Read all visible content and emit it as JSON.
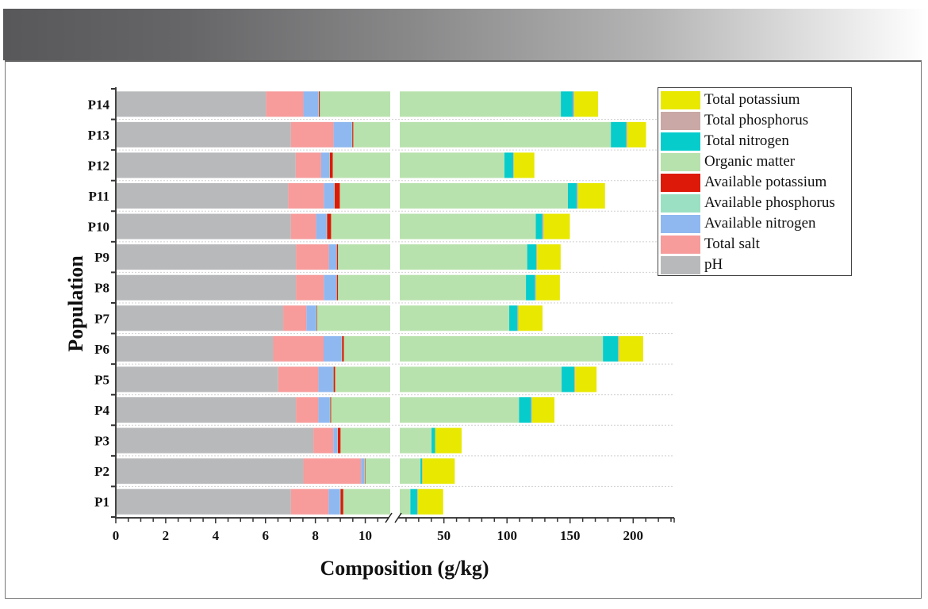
{
  "chart_data": {
    "type": "bar",
    "orientation": "horizontal",
    "stacked": true,
    "xlabel": "Composition (g/kg)",
    "ylabel": "Population",
    "x_axis_break": [
      11,
      15
    ],
    "xlim": [
      0,
      230
    ],
    "x_ticks_left": [
      "0",
      "2",
      "4",
      "6",
      "8",
      "10"
    ],
    "x_ticks_right": [
      "50",
      "100",
      "150",
      "200"
    ],
    "grid": "dotted horizontal between rows",
    "legend_position": "top-right",
    "categories": [
      "P1",
      "P2",
      "P3",
      "P4",
      "P5",
      "P6",
      "P7",
      "P8",
      "P9",
      "P10",
      "P11",
      "P12",
      "P13",
      "P14"
    ],
    "series": [
      {
        "name": "pH",
        "color": "#b8b9bb",
        "values": [
          7.02,
          7.52,
          7.92,
          7.22,
          6.51,
          6.31,
          6.71,
          7.22,
          7.22,
          7.02,
          6.91,
          7.21,
          7.02,
          6.02
        ]
      },
      {
        "name": "Total salt",
        "color": "#f79b9b",
        "values": [
          1.51,
          2.31,
          0.8,
          0.9,
          1.61,
          2.02,
          0.93,
          1.12,
          1.32,
          1.01,
          1.43,
          1.02,
          1.71,
          1.5
        ]
      },
      {
        "name": "Available nitrogen",
        "color": "#8fb8f0",
        "values": [
          0.46,
          0.13,
          0.16,
          0.46,
          0.59,
          0.72,
          0.39,
          0.5,
          0.3,
          0.42,
          0.41,
          0.33,
          0.73,
          0.6
        ]
      },
      {
        "name": "Available phosphorus",
        "color": "#9be0c3",
        "values": [
          0.02,
          0.02,
          0.02,
          0.02,
          0.02,
          0.02,
          0.02,
          0.02,
          0.02,
          0.02,
          0.02,
          0.02,
          0.02,
          0.02
        ]
      },
      {
        "name": "Available potassium",
        "color": "#dd1a0a",
        "values": [
          0.11,
          0.02,
          0.11,
          0.03,
          0.06,
          0.07,
          0.02,
          0.05,
          0.05,
          0.16,
          0.21,
          0.12,
          0.04,
          0.04
        ]
      },
      {
        "name": "Organic matter",
        "color": "#b8e2ad",
        "values": [
          14.3,
          21.4,
          31.2,
          100.9,
          134.5,
          166.9,
          93.7,
          106.1,
          107.1,
          114.2,
          139.3,
          89.3,
          172.8,
          134.5
        ]
      },
      {
        "name": "Total nitrogen",
        "color": "#06cccc",
        "values": [
          5.4,
          1.2,
          2.8,
          9.6,
          10.1,
          12.0,
          6.5,
          7.3,
          7.2,
          5.2,
          7.1,
          7.0,
          12.2,
          9.6
        ]
      },
      {
        "name": "Total phosphorus",
        "color": "#c9a8a5",
        "values": [
          0.5,
          0.4,
          0.1,
          0.7,
          0.6,
          0.8,
          0.7,
          0.7,
          0.6,
          1.0,
          0.9,
          0.4,
          0.8,
          1.1
        ]
      },
      {
        "name": "Total potassium",
        "color": "#e8e800",
        "values": [
          20.1,
          25.6,
          20.9,
          17.8,
          17.0,
          19.1,
          19.2,
          18.9,
          18.7,
          20.8,
          21.4,
          16.3,
          14.9,
          18.8
        ]
      }
    ]
  },
  "legend": {
    "items": [
      {
        "label": "Total potassium",
        "color": "#e8e800"
      },
      {
        "label": "Total phosphorus",
        "color": "#c9a8a5"
      },
      {
        "label": "Total nitrogen",
        "color": "#06cccc"
      },
      {
        "label": "Organic matter",
        "color": "#b8e2ad"
      },
      {
        "label": "Available potassium",
        "color": "#dd1a0a"
      },
      {
        "label": "Available phosphorus",
        "color": "#9be0c3"
      },
      {
        "label": "Available nitrogen",
        "color": "#8fb8f0"
      },
      {
        "label": "Total salt",
        "color": "#f79b9b"
      },
      {
        "label": "pH",
        "color": "#b8b9bb"
      }
    ]
  }
}
